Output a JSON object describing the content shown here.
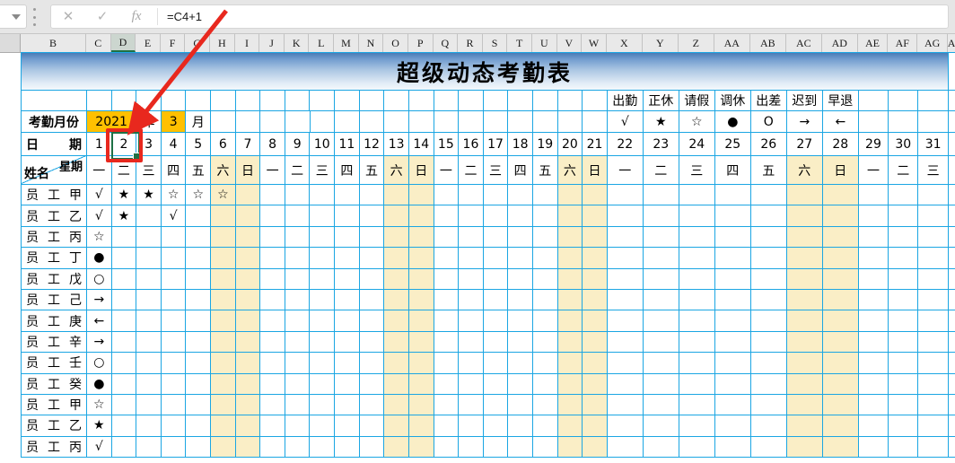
{
  "toolbar": {
    "formula": "=C4+1",
    "cancel_glyph": "✕",
    "confirm_glyph": "✓",
    "fx_label": "fx"
  },
  "column_headers": {
    "letters": [
      "B",
      "C",
      "D",
      "E",
      "F",
      "G",
      "H",
      "I",
      "J",
      "K",
      "L",
      "M",
      "N",
      "O",
      "P",
      "Q",
      "R",
      "S",
      "T",
      "U",
      "V",
      "W",
      "X",
      "Y",
      "Z",
      "AA",
      "AB",
      "AC",
      "AD",
      "AE",
      "AF",
      "AG"
    ],
    "selected": "D",
    "partial_last": "A"
  },
  "sheet": {
    "title": "超级动态考勤表",
    "legend": [
      {
        "name": "attendance",
        "label": "出勤",
        "symbol": "√"
      },
      {
        "name": "regular-rest",
        "label": "正休",
        "symbol": "★"
      },
      {
        "name": "leave",
        "label": "请假",
        "symbol": "☆"
      },
      {
        "name": "comp-rest",
        "label": "调休",
        "symbol": "●"
      },
      {
        "name": "business-trip",
        "label": "出差",
        "symbol": "O"
      },
      {
        "name": "late",
        "label": "迟到",
        "symbol": "→"
      },
      {
        "name": "early-leave",
        "label": "早退",
        "symbol": "←"
      }
    ],
    "month_row": {
      "label": "考勤月份",
      "year": "2021",
      "year_unit": "年",
      "month": "3",
      "month_unit": "月"
    },
    "date_row": {
      "label": "日期",
      "days": [
        1,
        2,
        3,
        4,
        5,
        6,
        7,
        8,
        9,
        10,
        11,
        12,
        13,
        14,
        15,
        16,
        17,
        18,
        19,
        20,
        21,
        22,
        23,
        24,
        25,
        26,
        27,
        28,
        29,
        30,
        31
      ],
      "selected_day": 2
    },
    "week_row": {
      "corner_top": "星期",
      "corner_bottom": "姓名",
      "weekdays": [
        "一",
        "二",
        "三",
        "四",
        "五",
        "六",
        "日",
        "一",
        "二",
        "三",
        "四",
        "五",
        "六",
        "日",
        "一",
        "二",
        "三",
        "四",
        "五",
        "六",
        "日",
        "一",
        "二",
        "三",
        "四",
        "五",
        "六",
        "日",
        "一",
        "二",
        "三"
      ]
    },
    "weekend_days": [
      6,
      7,
      13,
      14,
      20,
      21,
      27,
      28
    ],
    "employees": [
      {
        "name": "员工甲",
        "marks": {
          "1": "√",
          "2": "★",
          "3": "★",
          "4": "☆",
          "5": "☆",
          "6": "☆"
        }
      },
      {
        "name": "员工乙",
        "marks": {
          "1": "√",
          "2": "★",
          "4": "√"
        }
      },
      {
        "name": "员工丙",
        "marks": {
          "1": "☆"
        }
      },
      {
        "name": "员工丁",
        "marks": {
          "1": "●"
        }
      },
      {
        "name": "员工戊",
        "marks": {
          "1": "○"
        }
      },
      {
        "name": "员工己",
        "marks": {
          "1": "→"
        }
      },
      {
        "name": "员工庚",
        "marks": {
          "1": "←"
        }
      },
      {
        "name": "员工辛",
        "marks": {
          "1": "→"
        }
      },
      {
        "name": "员工壬",
        "marks": {
          "1": "○"
        }
      },
      {
        "name": "员工癸",
        "marks": {
          "1": "●"
        }
      },
      {
        "name": "员工甲",
        "marks": {
          "1": "☆"
        }
      },
      {
        "name": "员工乙",
        "marks": {
          "1": "★"
        }
      },
      {
        "name": "员工丙",
        "marks": {
          "1": "√"
        }
      }
    ]
  },
  "colors": {
    "grid_line": "#1ba6e3",
    "weekend_fill": "#faeec6",
    "highlight_fill": "#ffc000",
    "annotation_red": "#e8281e",
    "selection_green": "#1e7145"
  }
}
